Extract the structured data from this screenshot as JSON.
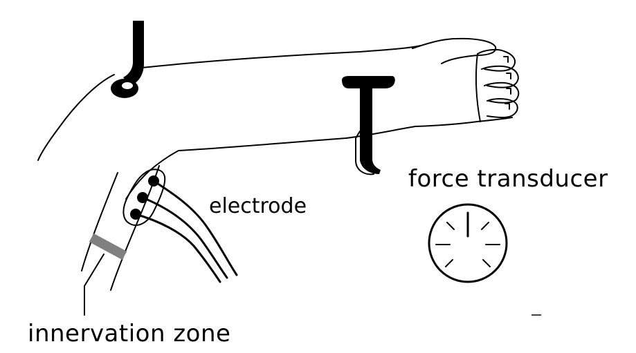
{
  "labels": {
    "electrode": "electrode",
    "force_transducer": "force transducer",
    "innervation_zone": "innervation zone"
  },
  "colors": {
    "ink": "#000000",
    "innervation_zone_marker": "#808080",
    "background": "#ffffff"
  }
}
